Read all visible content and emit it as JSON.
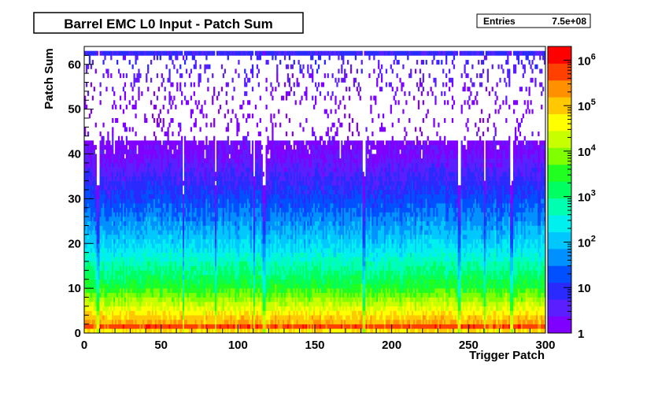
{
  "title_box": {
    "text": "Barrel EMC L0 Input - Patch Sum"
  },
  "stats_box": {
    "label": "Entries",
    "value": "7.5e+08"
  },
  "chart_data": {
    "type": "heatmap",
    "title": "Barrel EMC L0 Input - Patch Sum",
    "xlabel": "Trigger Patch",
    "ylabel": "Patch Sum",
    "xlim": [
      0,
      300
    ],
    "ylim": [
      0,
      64
    ],
    "x_ticks": [
      0,
      50,
      100,
      150,
      200,
      250,
      300
    ],
    "y_ticks": [
      0,
      10,
      20,
      30,
      40,
      50,
      60
    ],
    "x_bins": 300,
    "y_bins": 64,
    "z_scale": "log",
    "zlim": [
      1,
      2000000
    ],
    "z_tick_values": [
      1,
      10,
      100,
      1000,
      10000,
      100000,
      1000000
    ],
    "z_tick_labels": [
      "1",
      "10",
      "10^2",
      "10^3",
      "10^4",
      "10^5",
      "10^6"
    ],
    "entries": "7.5e+08",
    "grid": false,
    "colormap": [
      "#7f00ff",
      "#5a1eff",
      "#2a2aff",
      "#0050ff",
      "#0090ff",
      "#00c8ff",
      "#00f0f0",
      "#00ffb0",
      "#00ff60",
      "#20ff20",
      "#80ff00",
      "#c8ff00",
      "#ffff00",
      "#ffc800",
      "#ff9000",
      "#ff4000",
      "#ff0000"
    ],
    "profile_description_by_patch_sum": [
      {
        "patch_sum": 0,
        "approx_counts": 3000
      },
      {
        "patch_sum": 1,
        "approx_counts": 1500000
      },
      {
        "patch_sum": 2,
        "approx_counts": 200000
      },
      {
        "patch_sum": 5,
        "approx_counts": 40000
      },
      {
        "patch_sum": 10,
        "approx_counts": 3000
      },
      {
        "patch_sum": 20,
        "approx_counts": 150
      },
      {
        "patch_sum": 30,
        "approx_counts": 15
      },
      {
        "patch_sum": 40,
        "approx_counts": 2
      },
      {
        "patch_sum": 50,
        "approx_counts": 1
      },
      {
        "patch_sum": 62,
        "approx_counts": 6
      }
    ]
  }
}
